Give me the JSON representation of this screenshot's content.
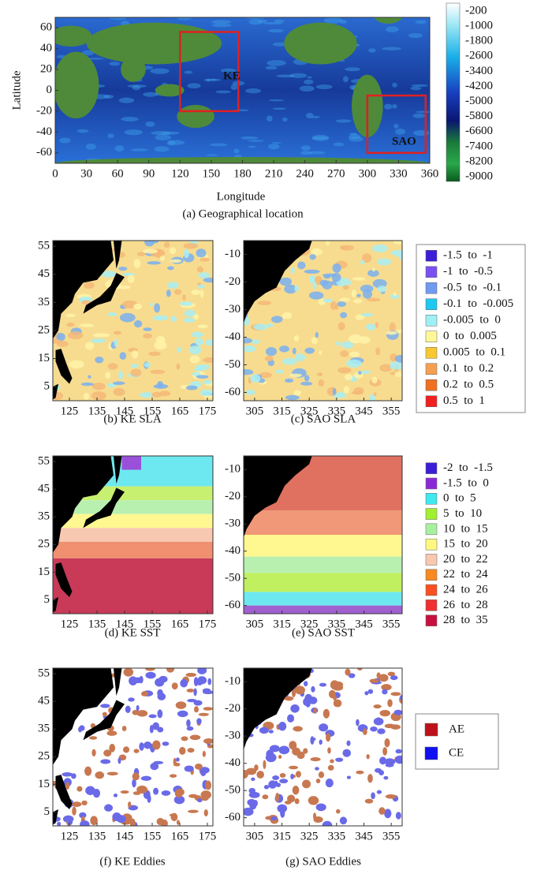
{
  "chart_data": [
    {
      "type": "map",
      "caption": "(a) Geographical  location",
      "xlabel": "Longitude",
      "ylabel": "Latitude",
      "xlim": [
        0,
        360
      ],
      "ylim": [
        -70,
        70
      ],
      "xticks": [
        0,
        30,
        60,
        90,
        120,
        150,
        180,
        210,
        240,
        270,
        300,
        330,
        360
      ],
      "yticks": [
        -60,
        -40,
        -20,
        0,
        20,
        40,
        60
      ],
      "annotations": [
        "KE",
        "SAO"
      ],
      "colorbar_ticks": [
        -200,
        -1000,
        -1800,
        -2600,
        -3400,
        -4200,
        -5000,
        -5800,
        -6600,
        -7400,
        -8200,
        -9000
      ]
    },
    {
      "type": "map",
      "caption": "(b) KE SLA",
      "xlim": [
        119,
        177
      ],
      "ylim": [
        0,
        57
      ],
      "xticks": [
        125,
        135,
        145,
        155,
        165,
        175
      ],
      "yticks": [
        5,
        15,
        25,
        35,
        45,
        55
      ],
      "legend": [
        {
          "label": "-1.5  to  -1",
          "color": "#3a1fd6"
        },
        {
          "label": "-1  to  -0.5",
          "color": "#7b4ff0"
        },
        {
          "label": "-0.5  to  -0.1",
          "color": "#6f9af0"
        },
        {
          "label": "-0.1  to  -0.005",
          "color": "#1ec8f0"
        },
        {
          "label": "-0.005  to  0",
          "color": "#9ff0f5"
        },
        {
          "label": "0  to  0.005",
          "color": "#fff79a"
        },
        {
          "label": "0.005  to  0.1",
          "color": "#f8c832"
        },
        {
          "label": "0.1  to  0.2",
          "color": "#f5a050"
        },
        {
          "label": "0.2  to  0.5",
          "color": "#f07020"
        },
        {
          "label": "0.5  to  1",
          "color": "#f02020"
        }
      ]
    },
    {
      "type": "map",
      "caption": "(c) SAO SLA",
      "xlim": [
        301,
        359
      ],
      "ylim": [
        -63,
        -5
      ],
      "xticks": [
        305,
        315,
        325,
        335,
        345,
        355
      ],
      "yticks": [
        -60,
        -50,
        -40,
        -30,
        -20,
        -10
      ]
    },
    {
      "type": "map",
      "caption": "(d) KE SST",
      "xlim": [
        119,
        177
      ],
      "ylim": [
        0,
        57
      ],
      "xticks": [
        125,
        135,
        145,
        155,
        165,
        175
      ],
      "yticks": [
        5,
        15,
        25,
        35,
        45,
        55
      ],
      "legend": [
        {
          "label": "-2  to  -1.5",
          "color": "#3a1fd6"
        },
        {
          "label": "-1.5  to  0",
          "color": "#8a2ad6"
        },
        {
          "label": "0  to  5",
          "color": "#40e8f0"
        },
        {
          "label": "5  to  10",
          "color": "#a0f030"
        },
        {
          "label": "10  to  15",
          "color": "#a8f0a0"
        },
        {
          "label": "15  to  20",
          "color": "#fff880"
        },
        {
          "label": "20  to  22",
          "color": "#f8c8b0"
        },
        {
          "label": "22  to  24",
          "color": "#f88a20"
        },
        {
          "label": "24  to  26",
          "color": "#f85020"
        },
        {
          "label": "26  to  28",
          "color": "#f03030"
        },
        {
          "label": "28  to  35",
          "color": "#c81040"
        }
      ]
    },
    {
      "type": "map",
      "caption": "(e) SAO SST",
      "xlim": [
        301,
        359
      ],
      "ylim": [
        -63,
        -5
      ],
      "xticks": [
        305,
        315,
        325,
        335,
        345,
        355
      ],
      "yticks": [
        -60,
        -50,
        -40,
        -30,
        -20,
        -10
      ]
    },
    {
      "type": "map",
      "caption": "(f) KE Eddies",
      "xlim": [
        119,
        177
      ],
      "ylim": [
        0,
        57
      ],
      "xticks": [
        125,
        135,
        145,
        155,
        165,
        175
      ],
      "yticks": [
        5,
        15,
        25,
        35,
        45,
        55
      ],
      "legend": [
        {
          "label": "AE",
          "color": "#c0101a"
        },
        {
          "label": "CE",
          "color": "#1010f0"
        }
      ]
    },
    {
      "type": "map",
      "caption": "(g) SAO Eddies",
      "xlim": [
        301,
        359
      ],
      "ylim": [
        -63,
        -5
      ],
      "xticks": [
        305,
        315,
        325,
        335,
        345,
        355
      ],
      "yticks": [
        -60,
        -50,
        -40,
        -30,
        -20,
        -10
      ]
    }
  ]
}
